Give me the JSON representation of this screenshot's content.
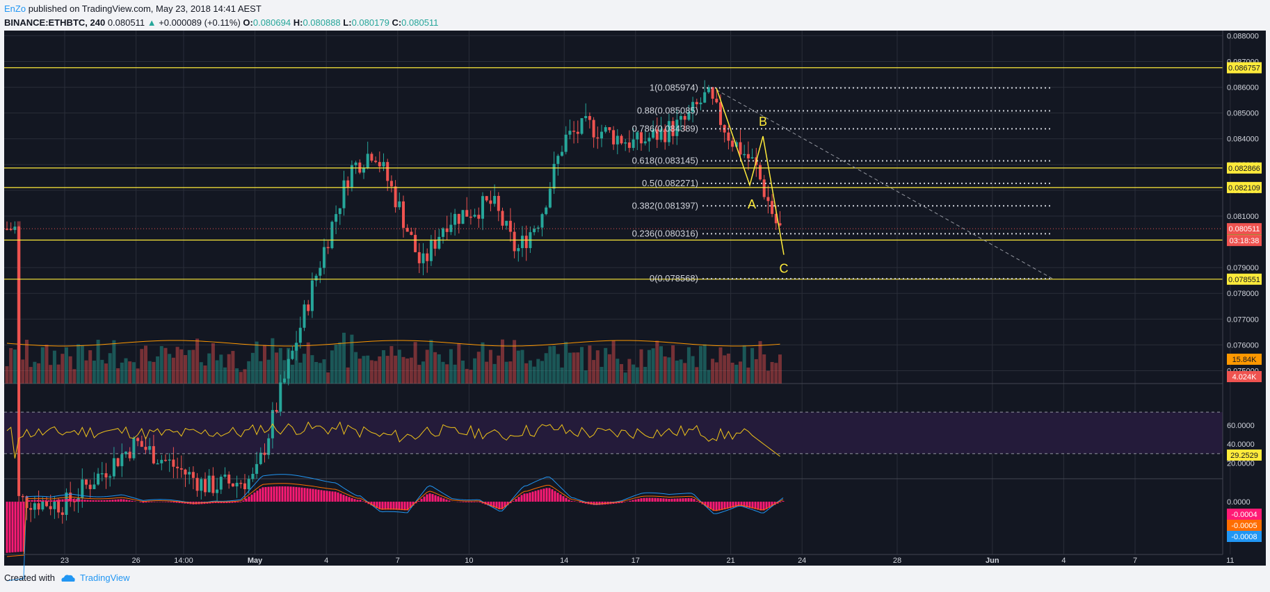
{
  "header": {
    "author": "EnZo",
    "published": "published on TradingView.com, May 23, 2018 14:41 AEST",
    "symbol": "BINANCE:ETHBTC, 240",
    "last": "0.080511",
    "change_arrow": "▲",
    "change": "+0.000089 (+0.11%)",
    "o_label": "O:",
    "o_val": "0.080694",
    "h_label": "H:",
    "h_val": "0.080888",
    "l_label": "L:",
    "l_val": "0.080179",
    "c_label": "C:",
    "c_val": "0.080511"
  },
  "footer": {
    "created_with": "Created with",
    "brand": "TradingView"
  },
  "colors": {
    "background": "#131722",
    "up": "#26a69a",
    "down": "#ef5350",
    "level_line": "#ffeb3b",
    "rsi": "#f0c419",
    "rsi_band": "#241b3a",
    "macd_hist": "#ff1a75",
    "macd_line": "#2196f3",
    "signal_line": "#ff6d00",
    "volume_ma": "#ff9800"
  },
  "chart_data": {
    "type": "candlestick",
    "symbol": "BINANCE:ETHBTC",
    "interval": "240",
    "grid": true,
    "price_axis_ticks": [
      "0.088000",
      "0.087000",
      "0.086000",
      "0.085000",
      "0.084000",
      "0.083000",
      "0.082000",
      "0.081000",
      "0.079000",
      "0.078000",
      "0.077000",
      "0.076000",
      "0.075000"
    ],
    "ylim": [
      0.0745,
      0.0882
    ],
    "time_axis_ticks": [
      "23",
      "26",
      "14:00",
      "May",
      "4",
      "7",
      "10",
      "14",
      "17",
      "21",
      "24",
      "28",
      "Jun",
      "4",
      "7",
      "11"
    ],
    "candles_approx": [
      {
        "date": "2018-04-21",
        "close": 0.07
      },
      {
        "date": "2018-04-23",
        "close": 0.0698
      },
      {
        "date": "2018-04-26",
        "close": 0.0722
      },
      {
        "date": "2018-04-29",
        "close": 0.0705
      },
      {
        "date": "2018-05-01",
        "close": 0.0708
      },
      {
        "date": "2018-05-03",
        "close": 0.077
      },
      {
        "date": "2018-05-04",
        "close": 0.08
      },
      {
        "date": "2018-05-05",
        "close": 0.0828
      },
      {
        "date": "2018-05-06",
        "close": 0.0836
      },
      {
        "date": "2018-05-07",
        "close": 0.0815
      },
      {
        "date": "2018-05-08",
        "close": 0.079
      },
      {
        "date": "2018-05-09",
        "close": 0.0808
      },
      {
        "date": "2018-05-10",
        "close": 0.0812
      },
      {
        "date": "2018-05-11",
        "close": 0.0815
      },
      {
        "date": "2018-05-12",
        "close": 0.0796
      },
      {
        "date": "2018-05-13",
        "close": 0.081
      },
      {
        "date": "2018-05-14",
        "close": 0.084
      },
      {
        "date": "2018-05-15",
        "close": 0.0845
      },
      {
        "date": "2018-05-17",
        "close": 0.0838
      },
      {
        "date": "2018-05-19",
        "close": 0.0846
      },
      {
        "date": "2018-05-20",
        "close": 0.0857
      },
      {
        "date": "2018-05-21",
        "close": 0.084
      },
      {
        "date": "2018-05-22",
        "close": 0.083
      },
      {
        "date": "2018-05-23",
        "close": 0.08051
      }
    ],
    "horizontal_levels": [
      {
        "price": 0.086757,
        "label": "0.086757"
      },
      {
        "price": 0.082866,
        "label": "0.082866"
      },
      {
        "price": 0.082109,
        "label": "0.082109"
      },
      {
        "price": 0.080069,
        "label": "0.080069"
      },
      {
        "price": 0.078551,
        "label": "0.078551"
      }
    ],
    "current_price": {
      "price": 0.080511,
      "label": "0.080511",
      "countdown": "03:18:38"
    },
    "fibonacci": [
      {
        "label": "1(0.085974)",
        "price": 0.085974
      },
      {
        "label": "0.88(0.085085)",
        "price": 0.085085
      },
      {
        "label": "0.786(0.084389)",
        "price": 0.084389
      },
      {
        "label": "0.618(0.083145)",
        "price": 0.083145
      },
      {
        "label": "0.5(0.082271)",
        "price": 0.082271
      },
      {
        "label": "0.382(0.081397)",
        "price": 0.081397
      },
      {
        "label": "0.236(0.080316)",
        "price": 0.080316
      },
      {
        "label": "0(0.078568)",
        "price": 0.078568
      }
    ],
    "wave_labels": [
      "A",
      "B",
      "C"
    ],
    "volume": {
      "labels": [
        "15.84K",
        "4.024K"
      ]
    },
    "rsi": {
      "ticks": [
        "60.0000",
        "40.0000",
        "20.0000"
      ],
      "value_label": "29.2529",
      "band": [
        30,
        70
      ]
    },
    "macd": {
      "ticks": [
        "0.0000"
      ],
      "labels": [
        {
          "text": "-0.0004",
          "color": "#ff1a75"
        },
        {
          "text": "-0.0005",
          "color": "#ff6d00"
        },
        {
          "text": "-0.0008",
          "color": "#2196f3"
        }
      ]
    }
  }
}
